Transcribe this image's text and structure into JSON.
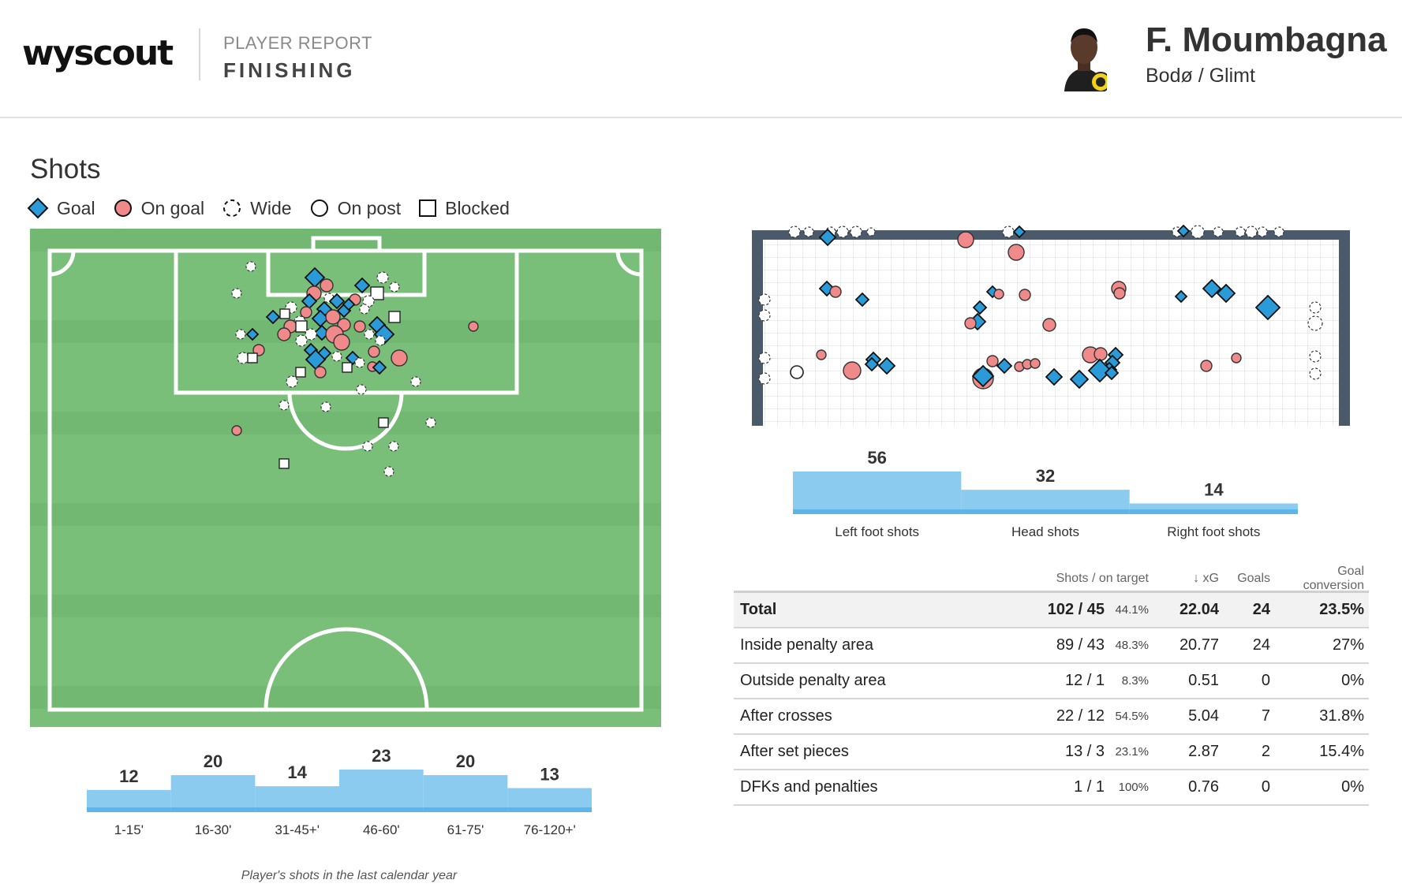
{
  "header": {
    "logo": "wyscout",
    "report_label": "PLAYER REPORT",
    "report_title": "FINISHING",
    "player_name": "F. Moumbagna",
    "team": "Bodø / Glimt"
  },
  "shots": {
    "title": "Shots",
    "legend": [
      {
        "label": "Goal",
        "icon": "diamond-icon",
        "color": "#2a9bd8"
      },
      {
        "label": "On goal",
        "icon": "circle-icon",
        "color": "#f08a8a"
      },
      {
        "label": "Wide",
        "icon": "dashed-circle-icon",
        "color": "#ffffff"
      },
      {
        "label": "On post",
        "icon": "circle-outline-icon",
        "color": "#ffffff"
      },
      {
        "label": "Blocked",
        "icon": "square-icon",
        "color": "#ffffff"
      }
    ],
    "caption": "Player's shots in the last calendar year"
  },
  "colors": {
    "pitch": "#79bf7a",
    "pitch_stripe": "#72b873",
    "goal": "#2a9bd8",
    "on_goal": "#f08a8a",
    "bar": "#8ccbf0",
    "goal_frame": "#4a5a6b"
  },
  "chart_data": [
    {
      "type": "bar",
      "title": "",
      "categories": [
        "1-15'",
        "16-30'",
        "31-45+'",
        "46-60'",
        "61-75'",
        "76-120+'"
      ],
      "values": [
        12,
        20,
        14,
        23,
        20,
        13
      ]
    },
    {
      "type": "bar",
      "title": "",
      "categories": [
        "Left foot shots",
        "Head shots",
        "Right foot shots"
      ],
      "values": [
        56,
        32,
        14
      ]
    }
  ],
  "table": {
    "headers": {
      "shots": "Shots / on target",
      "xg": "↓ xG",
      "goals": "Goals",
      "conversion": "Goal conversion"
    },
    "rows": [
      {
        "label": "Total",
        "shots": "102 / 45",
        "pct": "44.1%",
        "xg": "22.04",
        "goals": "24",
        "conversion": "23.5%"
      },
      {
        "label": "Inside penalty area",
        "shots": "89 / 43",
        "pct": "48.3%",
        "xg": "20.77",
        "goals": "24",
        "conversion": "27%"
      },
      {
        "label": "Outside penalty area",
        "shots": "12 / 1",
        "pct": "8.3%",
        "xg": "0.51",
        "goals": "0",
        "conversion": "0%"
      },
      {
        "label": "After crosses",
        "shots": "22 / 12",
        "pct": "54.5%",
        "xg": "5.04",
        "goals": "7",
        "conversion": "31.8%"
      },
      {
        "label": "After set pieces",
        "shots": "13 / 3",
        "pct": "23.1%",
        "xg": "2.87",
        "goals": "2",
        "conversion": "15.4%"
      },
      {
        "label": "DFKs and penalties",
        "shots": "1 / 1",
        "pct": "100%",
        "xg": "0.76",
        "goals": "0",
        "conversion": "0%"
      }
    ]
  }
}
